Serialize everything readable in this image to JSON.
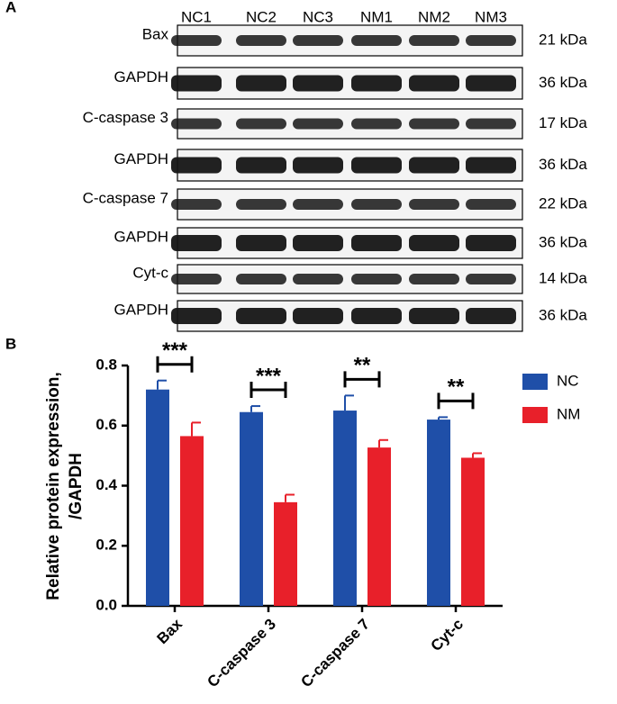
{
  "panel_a": {
    "label": "A",
    "lanes": [
      "NC1",
      "NC2",
      "NC3",
      "NM1",
      "NM2",
      "NM3"
    ],
    "rows": [
      {
        "protein": "Bax",
        "weight": "21 kDa"
      },
      {
        "protein": "GAPDH",
        "weight": "36 kDa"
      },
      {
        "protein": "C-caspase 3",
        "weight": "17 kDa"
      },
      {
        "protein": "GAPDH",
        "weight": "36 kDa"
      },
      {
        "protein": "C-caspase 7",
        "weight": "22 kDa"
      },
      {
        "protein": "GAPDH",
        "weight": "36 kDa"
      },
      {
        "protein": "Cyt-c",
        "weight": "14 kDa"
      },
      {
        "protein": "GAPDH",
        "weight": "36 kDa"
      }
    ]
  },
  "panel_b_label": "B",
  "chart_data": {
    "type": "bar",
    "ylabel": [
      "Relative protein expression,",
      "/GAPDH"
    ],
    "categories": [
      "Bax",
      "C-caspase 3",
      "C-caspase 7",
      "Cyt-c"
    ],
    "series": [
      {
        "name": "NC",
        "color": "#1f4fa8",
        "values": [
          0.72,
          0.645,
          0.65,
          0.62
        ],
        "errors": [
          0.03,
          0.02,
          0.05,
          0.008
        ]
      },
      {
        "name": "NM",
        "color": "#e8202a",
        "values": [
          0.565,
          0.345,
          0.527,
          0.493
        ],
        "errors": [
          0.045,
          0.025,
          0.025,
          0.015
        ]
      }
    ],
    "significance": [
      "***",
      "***",
      "**",
      "**"
    ],
    "ylim": [
      0,
      0.8
    ],
    "yticks": [
      {
        "value": 0,
        "label": "0.0"
      },
      0.2,
      0.4,
      0.6,
      0.8
    ],
    "legend": "top-right"
  }
}
